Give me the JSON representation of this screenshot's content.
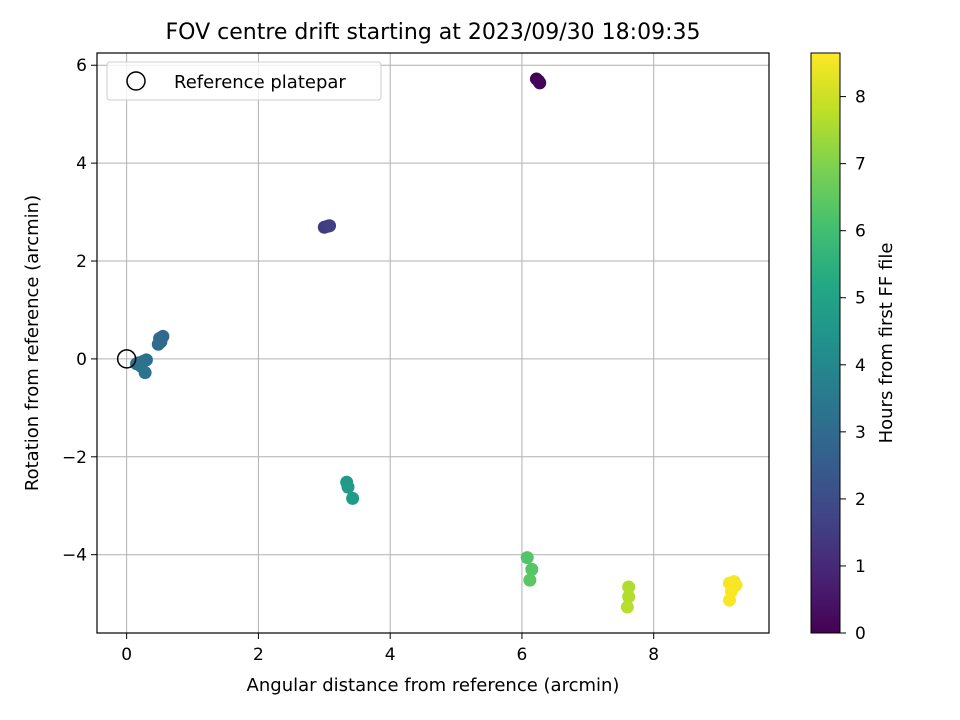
{
  "chart_data": {
    "type": "scatter",
    "title": "FOV centre drift starting at 2023/09/30 18:09:35",
    "xlabel": "Angular distance from reference (arcmin)",
    "ylabel": "Rotation from reference (arcmin)",
    "xlim": [
      -0.45,
      9.75
    ],
    "ylim": [
      -5.6,
      6.25
    ],
    "xticks": [
      0,
      2,
      4,
      6,
      8
    ],
    "yticks": [
      -4,
      -2,
      0,
      2,
      4,
      6
    ],
    "xtick_labels": [
      "0",
      "2",
      "4",
      "6",
      "8"
    ],
    "ytick_labels": [
      "−4",
      "−2",
      "0",
      "2",
      "4",
      "6"
    ],
    "grid": true,
    "legend_position": "upper-left",
    "reference": {
      "label": "Reference platepar",
      "x": 0,
      "y": 0
    },
    "colorbar": {
      "label": "Hours from first FF file",
      "min": 0,
      "max": 8.65,
      "ticks": [
        0,
        1,
        2,
        3,
        4,
        5,
        6,
        7,
        8
      ],
      "tick_labels": [
        "0",
        "1",
        "2",
        "3",
        "4",
        "5",
        "6",
        "7",
        "8"
      ],
      "colormap": "viridis"
    },
    "points": [
      {
        "x": 6.22,
        "y": 5.72,
        "hours": 0.0
      },
      {
        "x": 6.25,
        "y": 5.68,
        "hours": 0.05
      },
      {
        "x": 6.27,
        "y": 5.64,
        "hours": 0.1
      },
      {
        "x": 3.0,
        "y": 2.69,
        "hours": 1.5
      },
      {
        "x": 3.05,
        "y": 2.71,
        "hours": 1.55
      },
      {
        "x": 3.08,
        "y": 2.72,
        "hours": 1.6
      },
      {
        "x": 0.55,
        "y": 0.46,
        "hours": 2.9
      },
      {
        "x": 0.5,
        "y": 0.42,
        "hours": 2.95
      },
      {
        "x": 0.52,
        "y": 0.35,
        "hours": 3.0
      },
      {
        "x": 0.48,
        "y": 0.3,
        "hours": 3.0
      },
      {
        "x": 0.3,
        "y": -0.02,
        "hours": 3.2
      },
      {
        "x": 0.25,
        "y": -0.05,
        "hours": 3.2
      },
      {
        "x": 0.18,
        "y": -0.08,
        "hours": 3.25
      },
      {
        "x": 0.15,
        "y": -0.1,
        "hours": 3.25
      },
      {
        "x": 0.22,
        "y": -0.15,
        "hours": 3.3
      },
      {
        "x": 0.28,
        "y": -0.28,
        "hours": 3.3
      },
      {
        "x": 3.34,
        "y": -2.52,
        "hours": 4.6
      },
      {
        "x": 3.36,
        "y": -2.62,
        "hours": 4.65
      },
      {
        "x": 3.43,
        "y": -2.85,
        "hours": 4.7
      },
      {
        "x": 6.08,
        "y": -4.06,
        "hours": 6.3
      },
      {
        "x": 6.15,
        "y": -4.3,
        "hours": 6.35
      },
      {
        "x": 6.12,
        "y": -4.52,
        "hours": 6.4
      },
      {
        "x": 7.62,
        "y": -4.66,
        "hours": 7.6
      },
      {
        "x": 7.62,
        "y": -4.86,
        "hours": 7.65
      },
      {
        "x": 7.6,
        "y": -5.07,
        "hours": 7.7
      },
      {
        "x": 9.15,
        "y": -4.58,
        "hours": 8.5
      },
      {
        "x": 9.22,
        "y": -4.55,
        "hours": 8.55
      },
      {
        "x": 9.25,
        "y": -4.62,
        "hours": 8.55
      },
      {
        "x": 9.18,
        "y": -4.75,
        "hours": 8.6
      },
      {
        "x": 9.15,
        "y": -4.93,
        "hours": 8.6
      }
    ]
  }
}
